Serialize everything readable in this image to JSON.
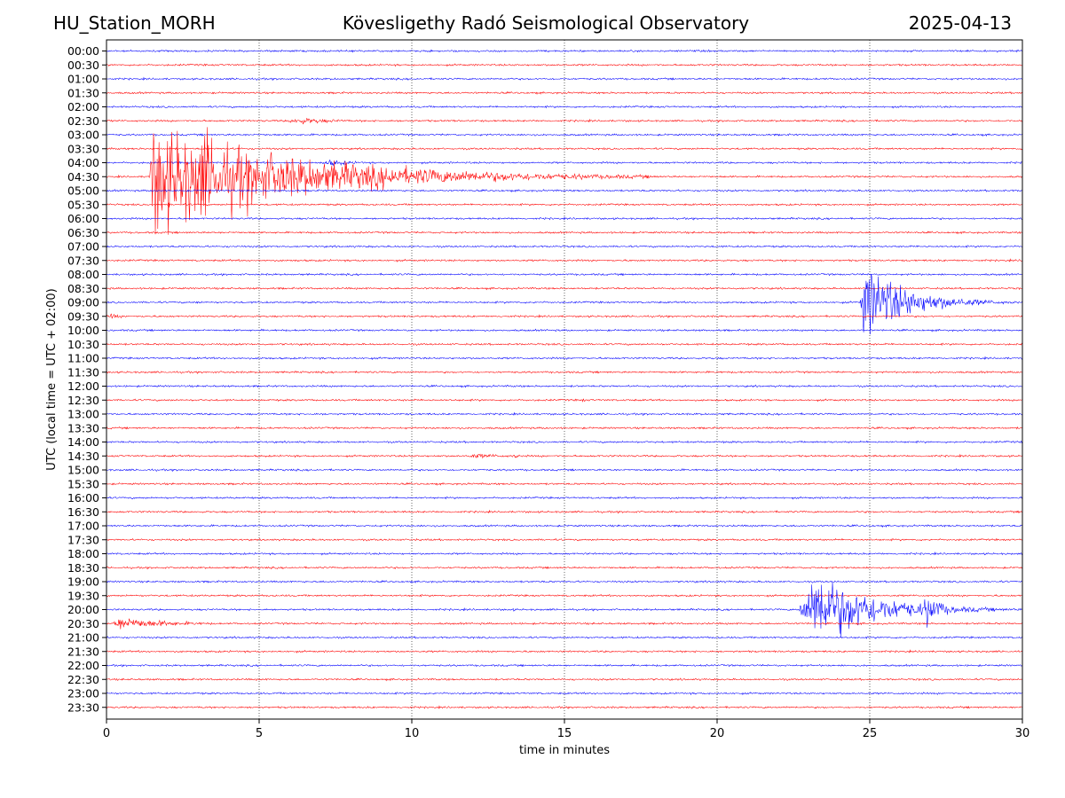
{
  "header": {
    "station": "HU_Station_MORH",
    "observatory": "Kövesligethy Radó Seismological Observatory",
    "date": "2025-04-13"
  },
  "chart_data": {
    "type": "line",
    "xlabel": "time in minutes",
    "ylabel": "UTC (local time = UTC + 02:00)",
    "xlim": [
      0,
      30
    ],
    "xticks": [
      "0",
      "5",
      "10",
      "15",
      "20",
      "25",
      "30"
    ],
    "x_gridlines_minutes": [
      5,
      10,
      15,
      20,
      25
    ],
    "grid": "vertical dotted",
    "rows": [
      "00:00",
      "00:30",
      "01:00",
      "01:30",
      "02:00",
      "02:30",
      "03:00",
      "03:30",
      "04:00",
      "04:30",
      "05:00",
      "05:30",
      "06:00",
      "06:30",
      "07:00",
      "07:30",
      "08:00",
      "08:30",
      "09:00",
      "09:30",
      "10:00",
      "10:30",
      "11:00",
      "11:30",
      "12:00",
      "12:30",
      "13:00",
      "13:30",
      "14:00",
      "14:30",
      "15:00",
      "15:30",
      "16:00",
      "16:30",
      "17:00",
      "17:30",
      "18:00",
      "18:30",
      "19:00",
      "19:30",
      "20:00",
      "20:30",
      "21:00",
      "21:30",
      "22:00",
      "22:30",
      "23:00",
      "23:30"
    ],
    "row_colors": [
      "#0000ff",
      "#ff0000"
    ],
    "events": [
      {
        "row": "02:30",
        "start_min": 5.8,
        "end_min": 11.0,
        "peak_min": 6.3,
        "amplitude": 0.35
      },
      {
        "row": "04:00",
        "start_min": 7.1,
        "end_min": 10.5,
        "peak_min": 7.2,
        "amplitude": 0.35
      },
      {
        "row": "04:30",
        "start_min": 1.4,
        "end_min": 18.0,
        "peak_min": 1.5,
        "amplitude": 5.4
      },
      {
        "row": "04:30",
        "start_min": 2.9,
        "end_min": 8.0,
        "peak_min": 3.1,
        "amplitude": 5.2
      },
      {
        "row": "09:00",
        "start_min": 2.9,
        "end_min": 3.5,
        "peak_min": 3.0,
        "amplitude": 0.2
      },
      {
        "row": "09:00",
        "start_min": 24.7,
        "end_min": 30.0,
        "peak_min": 24.8,
        "amplitude": 3.8
      },
      {
        "row": "09:30",
        "start_min": 0.0,
        "end_min": 1.2,
        "peak_min": 0.2,
        "amplitude": 0.3
      },
      {
        "row": "12:30",
        "start_min": 15.4,
        "end_min": 16.0,
        "peak_min": 15.6,
        "amplitude": 0.2
      },
      {
        "row": "14:30",
        "start_min": 11.8,
        "end_min": 17.5,
        "peak_min": 12.0,
        "amplitude": 0.25
      },
      {
        "row": "14:30",
        "start_min": 13.2,
        "end_min": 14.0,
        "peak_min": 13.4,
        "amplitude": 0.25
      },
      {
        "row": "20:00",
        "start_min": 13.0,
        "end_min": 14.0,
        "peak_min": 13.3,
        "amplitude": 0.15
      },
      {
        "row": "20:00",
        "start_min": 22.7,
        "end_min": 30.0,
        "peak_min": 23.3,
        "amplitude": 3.7
      },
      {
        "row": "20:00",
        "start_min": 26.7,
        "end_min": 28.5,
        "peak_min": 26.9,
        "amplitude": 1.8
      },
      {
        "row": "20:30",
        "start_min": 0.2,
        "end_min": 6.0,
        "peak_min": 0.4,
        "amplitude": 0.7
      }
    ]
  }
}
